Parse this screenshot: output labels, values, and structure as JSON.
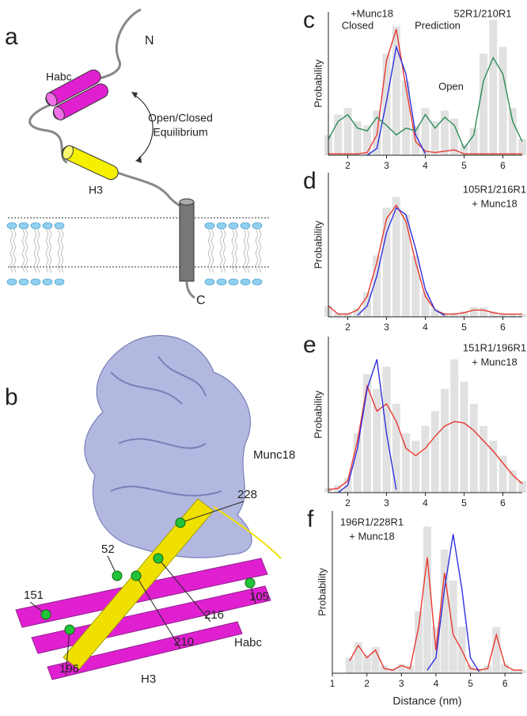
{
  "panel_a": {
    "label": "a",
    "n": "N",
    "habc": "Habc",
    "equilibrium_1": "Open/Closed",
    "equilibrium_2": "Equilibrium",
    "h3": "H3",
    "c": "C"
  },
  "panel_b": {
    "label": "b",
    "munc18": "Munc18",
    "residues": [
      "228",
      "52",
      "151",
      "105",
      "216",
      "210",
      "196"
    ],
    "h3": "H3",
    "habc": "Habc"
  },
  "chart_data": [
    {
      "type": "line",
      "panel": "c",
      "title": "52R1/210R1",
      "annotations": [
        "+Munc18",
        "Closed",
        "Prediction",
        "Open"
      ],
      "ylabel": "Probability",
      "x": [
        1.5,
        1.75,
        2.0,
        2.25,
        2.5,
        2.75,
        3.0,
        3.25,
        3.5,
        3.75,
        4.0,
        4.25,
        4.5,
        4.75,
        5.0,
        5.25,
        5.5,
        5.75,
        6.0,
        6.25,
        6.5
      ],
      "xlim": [
        1.5,
        6.5
      ],
      "xticks": [
        2,
        3,
        4,
        5,
        6
      ],
      "ylim": [
        0,
        1
      ],
      "series": [
        {
          "color": "#c8c8c8",
          "style": "bars",
          "values": [
            0.15,
            0.3,
            0.35,
            0.25,
            0.22,
            0.33,
            0.75,
            0.95,
            0.55,
            0.22,
            0.35,
            0.25,
            0.33,
            0.27,
            0.08,
            0.2,
            0.75,
            1.0,
            0.8,
            0.35,
            0.12
          ]
        },
        {
          "color": "#e8392f",
          "style": "line",
          "values": [
            0.01,
            0.01,
            0.01,
            0.01,
            0.02,
            0.15,
            0.7,
            0.93,
            0.5,
            0.1,
            0.03,
            0.02,
            0.03,
            0.04,
            0.01,
            0.01,
            0.01,
            0.01,
            0.01,
            0.01,
            0.01
          ]
        },
        {
          "color": "#2f2fe0",
          "style": "line",
          "values": [
            null,
            null,
            null,
            null,
            0.0,
            0.05,
            0.4,
            0.8,
            0.6,
            0.15,
            0.01,
            null,
            null,
            null,
            null,
            null,
            null,
            null,
            null,
            null,
            null
          ]
        },
        {
          "color": "#2e8b57",
          "style": "line",
          "values": [
            0.12,
            0.25,
            0.3,
            0.2,
            0.18,
            0.28,
            0.22,
            0.15,
            0.2,
            0.18,
            0.3,
            0.2,
            0.28,
            0.22,
            0.05,
            0.15,
            0.55,
            0.72,
            0.6,
            0.25,
            0.1
          ]
        }
      ]
    },
    {
      "type": "line",
      "panel": "d",
      "title": "105R1/216R1",
      "subtitle": "+ Munc18",
      "ylabel": "Probability",
      "x": [
        1.5,
        1.75,
        2.0,
        2.25,
        2.5,
        2.75,
        3.0,
        3.25,
        3.5,
        3.75,
        4.0,
        4.25,
        4.5,
        4.75,
        5.0,
        5.25,
        5.5,
        5.75,
        6.0,
        6.25,
        6.5
      ],
      "xlim": [
        1.5,
        6.5
      ],
      "xticks": [
        2,
        3,
        4,
        5,
        6
      ],
      "ylim": [
        0,
        1
      ],
      "series": [
        {
          "color": "#c8c8c8",
          "style": "bars",
          "values": [
            0.08,
            0.03,
            0.03,
            0.06,
            0.18,
            0.45,
            0.8,
            0.88,
            0.75,
            0.45,
            0.18,
            0.06,
            0.03,
            0.03,
            0.04,
            0.07,
            0.07,
            0.04,
            0.02,
            0.02,
            0.02
          ]
        },
        {
          "color": "#e8392f",
          "style": "line",
          "values": [
            0.08,
            0.02,
            0.02,
            0.05,
            0.15,
            0.4,
            0.72,
            0.82,
            0.7,
            0.4,
            0.15,
            0.05,
            0.02,
            0.02,
            0.03,
            0.05,
            0.05,
            0.03,
            0.02,
            0.02,
            0.02
          ]
        },
        {
          "color": "#2f2fe0",
          "style": "line",
          "values": [
            null,
            null,
            null,
            0.01,
            0.08,
            0.3,
            0.62,
            0.8,
            0.75,
            0.5,
            0.2,
            0.05,
            0.01,
            null,
            null,
            null,
            null,
            null,
            null,
            null,
            null
          ]
        }
      ]
    },
    {
      "type": "line",
      "panel": "e",
      "title": "151R1/196R1",
      "subtitle": "+ Munc18",
      "ylabel": "Probability",
      "x": [
        1.5,
        1.75,
        2.0,
        2.25,
        2.5,
        2.75,
        3.0,
        3.25,
        3.5,
        3.75,
        4.0,
        4.25,
        4.5,
        4.75,
        5.0,
        5.25,
        5.5,
        5.75,
        6.0,
        6.25,
        6.5
      ],
      "xlim": [
        1.5,
        6.5
      ],
      "xticks": [
        2,
        3,
        4,
        5,
        6
      ],
      "ylim": [
        0,
        1
      ],
      "series": [
        {
          "color": "#c8c8c8",
          "style": "bars",
          "values": [
            0.03,
            0.05,
            0.1,
            0.4,
            0.8,
            0.7,
            0.85,
            0.6,
            0.4,
            0.35,
            0.45,
            0.55,
            0.7,
            0.9,
            0.75,
            0.6,
            0.45,
            0.35,
            0.25,
            0.15,
            0.08
          ]
        },
        {
          "color": "#e8392f",
          "style": "line",
          "values": [
            0.02,
            0.03,
            0.08,
            0.35,
            0.72,
            0.55,
            0.6,
            0.48,
            0.3,
            0.25,
            0.3,
            0.38,
            0.45,
            0.48,
            0.47,
            0.42,
            0.35,
            0.28,
            0.2,
            0.12,
            0.06
          ]
        },
        {
          "color": "#2f2fe0",
          "style": "line",
          "values": [
            null,
            0.0,
            0.05,
            0.3,
            0.7,
            0.9,
            0.4,
            0.02,
            null,
            null,
            null,
            null,
            null,
            null,
            null,
            null,
            null,
            null,
            null,
            null,
            null
          ]
        }
      ]
    },
    {
      "type": "line",
      "panel": "f",
      "title": "196R1/228R1",
      "subtitle": "+ Munc18",
      "ylabel": "Probability",
      "xlabel": "Distance (nm)",
      "x": [
        1.5,
        1.75,
        2.0,
        2.25,
        2.5,
        2.75,
        3.0,
        3.25,
        3.5,
        3.75,
        4.0,
        4.25,
        4.5,
        4.75,
        5.0,
        5.25,
        5.5,
        5.75,
        6.0,
        6.25,
        6.5
      ],
      "xlim": [
        1,
        6.5
      ],
      "xticks": [
        1,
        2,
        3,
        4,
        5,
        6
      ],
      "ylim": [
        0,
        1
      ],
      "series": [
        {
          "color": "#c8c8c8",
          "style": "bars",
          "values": [
            0.1,
            0.2,
            0.12,
            0.17,
            0.05,
            0.03,
            0.06,
            0.05,
            0.4,
            0.95,
            0.3,
            0.8,
            0.6,
            0.3,
            0.05,
            0.03,
            0.05,
            0.3,
            0.06,
            0.02,
            0.02
          ]
        },
        {
          "color": "#e8392f",
          "style": "line",
          "values": [
            0.08,
            0.18,
            0.1,
            0.15,
            0.03,
            0.02,
            0.05,
            0.03,
            0.3,
            0.75,
            0.15,
            0.65,
            0.25,
            0.15,
            0.03,
            0.02,
            0.03,
            0.25,
            0.05,
            0.02,
            0.02
          ]
        },
        {
          "color": "#2f2fe0",
          "style": "line",
          "values": [
            null,
            null,
            null,
            null,
            null,
            null,
            null,
            null,
            null,
            0.02,
            0.1,
            0.55,
            0.9,
            0.55,
            0.1,
            0.01,
            null,
            null,
            null,
            null,
            null
          ]
        }
      ]
    }
  ]
}
